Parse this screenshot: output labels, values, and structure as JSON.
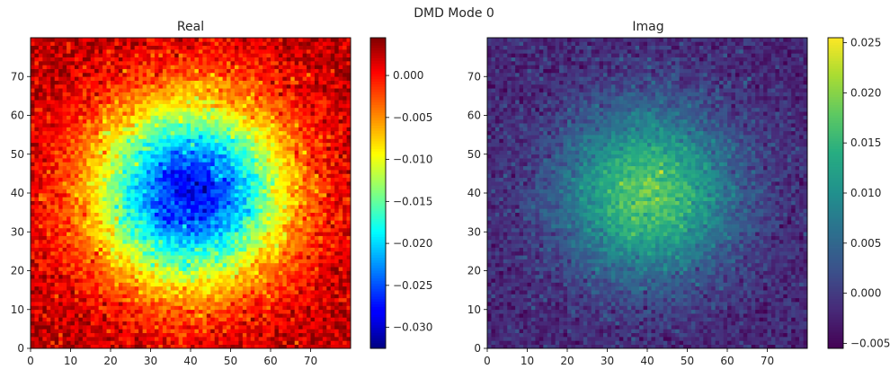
{
  "figure": {
    "suptitle": "DMD Mode 0"
  },
  "chart_data": [
    {
      "type": "heatmap",
      "title": "Real",
      "colormap": "jet",
      "grid_size": [
        80,
        80
      ],
      "x_range": [
        0,
        80
      ],
      "y_range": [
        0,
        80
      ],
      "x_ticks": [
        0,
        10,
        20,
        30,
        40,
        50,
        60,
        70
      ],
      "y_ticks": [
        0,
        10,
        20,
        30,
        40,
        50,
        60,
        70
      ],
      "field": {
        "kind": "gaussian",
        "center": [
          40,
          40
        ],
        "sigma": 17,
        "baseline": 0.003,
        "peak": -0.031,
        "noise": 0.0018
      },
      "colorbar": {
        "range": [
          -0.0325,
          0.0045
        ],
        "ticks": [
          0.0,
          -0.005,
          -0.01,
          -0.015,
          -0.02,
          -0.025,
          -0.03
        ],
        "tick_labels": [
          "0.000",
          "−0.005",
          "−0.010",
          "−0.015",
          "−0.020",
          "−0.025",
          "−0.030"
        ]
      },
      "legend": "colorbar-right",
      "grid": false
    },
    {
      "type": "heatmap",
      "title": "Imag",
      "colormap": "viridis",
      "grid_size": [
        80,
        80
      ],
      "x_range": [
        0,
        80
      ],
      "y_range": [
        0,
        80
      ],
      "x_ticks": [
        0,
        10,
        20,
        30,
        40,
        50,
        60,
        70
      ],
      "y_ticks": [
        0,
        10,
        20,
        30,
        40,
        50,
        60,
        70
      ],
      "field": {
        "kind": "gaussian",
        "center": [
          40,
          40
        ],
        "sigma": 15,
        "baseline": -0.002,
        "peak": 0.02,
        "noise": 0.0018
      },
      "colorbar": {
        "range": [
          -0.0055,
          0.0255
        ],
        "ticks": [
          0.025,
          0.02,
          0.015,
          0.01,
          0.005,
          0.0,
          -0.005
        ],
        "tick_labels": [
          "0.025",
          "0.020",
          "0.015",
          "0.010",
          "0.005",
          "0.000",
          "−0.005"
        ]
      },
      "legend": "colorbar-right",
      "grid": false
    }
  ]
}
